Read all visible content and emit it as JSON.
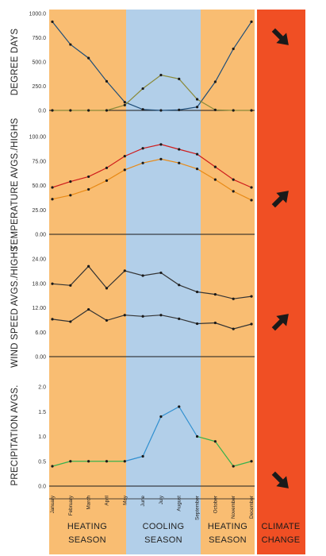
{
  "colors": {
    "heating_band": "#f9bd72",
    "cooling_band": "#b2cfe9",
    "climate_band": "#f04f24",
    "axis": "#1a1a1a",
    "arrow": "#1a1a1a",
    "marker": "#1a1a1a"
  },
  "months": [
    "January",
    "February",
    "March",
    "April",
    "May",
    "June",
    "July",
    "August",
    "September",
    "October",
    "November",
    "December"
  ],
  "seasons": [
    {
      "line1": "HEATING",
      "line2": "SEASON",
      "range": "January-May",
      "color": "#f9bd72"
    },
    {
      "line1": "COOLING",
      "line2": "SEASON",
      "range": "May-September",
      "color": "#b2cfe9"
    },
    {
      "line1": "HEATING",
      "line2": "SEASON",
      "range": "September-December",
      "color": "#f9bd72"
    }
  ],
  "climate_change": {
    "line1": "CLIMATE",
    "line2": "CHANGE",
    "color": "#f04f24"
  },
  "chart_data": [
    {
      "type": "line",
      "ylabel": "DEGREE DAYS",
      "ylim": [
        0,
        1000
      ],
      "yticks": [
        "0.0",
        "250.0",
        "500.0",
        "750.0",
        "1000.0"
      ],
      "ytick_values": [
        0,
        250,
        500,
        750,
        1000
      ],
      "categories": [
        "January",
        "February",
        "March",
        "April",
        "May",
        "June",
        "July",
        "August",
        "September",
        "October",
        "November",
        "December"
      ],
      "series": [
        {
          "role": "heating degree days",
          "color": "#1f4e79",
          "values": [
            915,
            680,
            540,
            300,
            85,
            10,
            0,
            5,
            35,
            295,
            635,
            915
          ]
        },
        {
          "role": "cooling degree days",
          "color": "#8a8a3a",
          "values": [
            0,
            0,
            0,
            0,
            55,
            225,
            365,
            325,
            115,
            5,
            0,
            0
          ]
        }
      ],
      "trend": "down"
    },
    {
      "type": "line",
      "ylabel": "TEMPERATURE AVGS./HIGHS",
      "ylim": [
        0,
        100
      ],
      "yticks": [
        "0.00",
        "25.00",
        "50.00",
        "75.00",
        "100.00"
      ],
      "ytick_values": [
        0,
        25,
        50,
        75,
        100
      ],
      "categories": [
        "January",
        "February",
        "March",
        "April",
        "May",
        "June",
        "July",
        "August",
        "September",
        "October",
        "November",
        "December"
      ],
      "series": [
        {
          "role": "average highs",
          "color": "#cf1c1c",
          "values": [
            48,
            54,
            59,
            68,
            80,
            88,
            92,
            87,
            82,
            69,
            56,
            48
          ]
        },
        {
          "role": "averages",
          "color": "#e88a16",
          "values": [
            36,
            40,
            46,
            55,
            66,
            73,
            77,
            73,
            67,
            56,
            44,
            35
          ]
        }
      ],
      "trend": "up"
    },
    {
      "type": "line",
      "ylabel": "WIND SPEED AVGS./HIGHS",
      "ylim": [
        0,
        24
      ],
      "yticks": [
        "0.00",
        "6.00",
        "12.00",
        "18.00",
        "24.00"
      ],
      "ytick_values": [
        0,
        6,
        12,
        18,
        24
      ],
      "categories": [
        "January",
        "February",
        "March",
        "April",
        "May",
        "June",
        "July",
        "August",
        "September",
        "October",
        "November",
        "December"
      ],
      "series": [
        {
          "role": "wind highs",
          "color": "#333333",
          "values": [
            17.9,
            17.5,
            22.2,
            16.8,
            21.1,
            19.9,
            20.6,
            17.6,
            15.9,
            15.3,
            14.2,
            14.8
          ]
        },
        {
          "role": "wind averages",
          "color": "#333333",
          "values": [
            9.2,
            8.6,
            11.6,
            8.9,
            10.2,
            9.9,
            10.2,
            9.3,
            8.1,
            8.3,
            6.8,
            8.0
          ]
        }
      ],
      "trend": "up"
    },
    {
      "type": "line",
      "ylabel": "PRECIPITATION AVGS.",
      "ylim": [
        0,
        2.0
      ],
      "yticks": [
        "0.0",
        "0.5",
        "1.0",
        "1.5",
        "2.0"
      ],
      "ytick_values": [
        0,
        0.5,
        1.0,
        1.5,
        2.0
      ],
      "categories": [
        "January",
        "February",
        "March",
        "April",
        "May",
        "June",
        "July",
        "August",
        "September",
        "October",
        "November",
        "December"
      ],
      "series": [
        {
          "role": "precipitation",
          "color": "#2f8fd0",
          "alt_color": "#37b24d",
          "values": [
            0.4,
            0.5,
            0.5,
            0.5,
            0.5,
            0.6,
            1.4,
            1.6,
            1.0,
            0.9,
            0.4,
            0.5
          ]
        }
      ],
      "trend": "down"
    }
  ]
}
